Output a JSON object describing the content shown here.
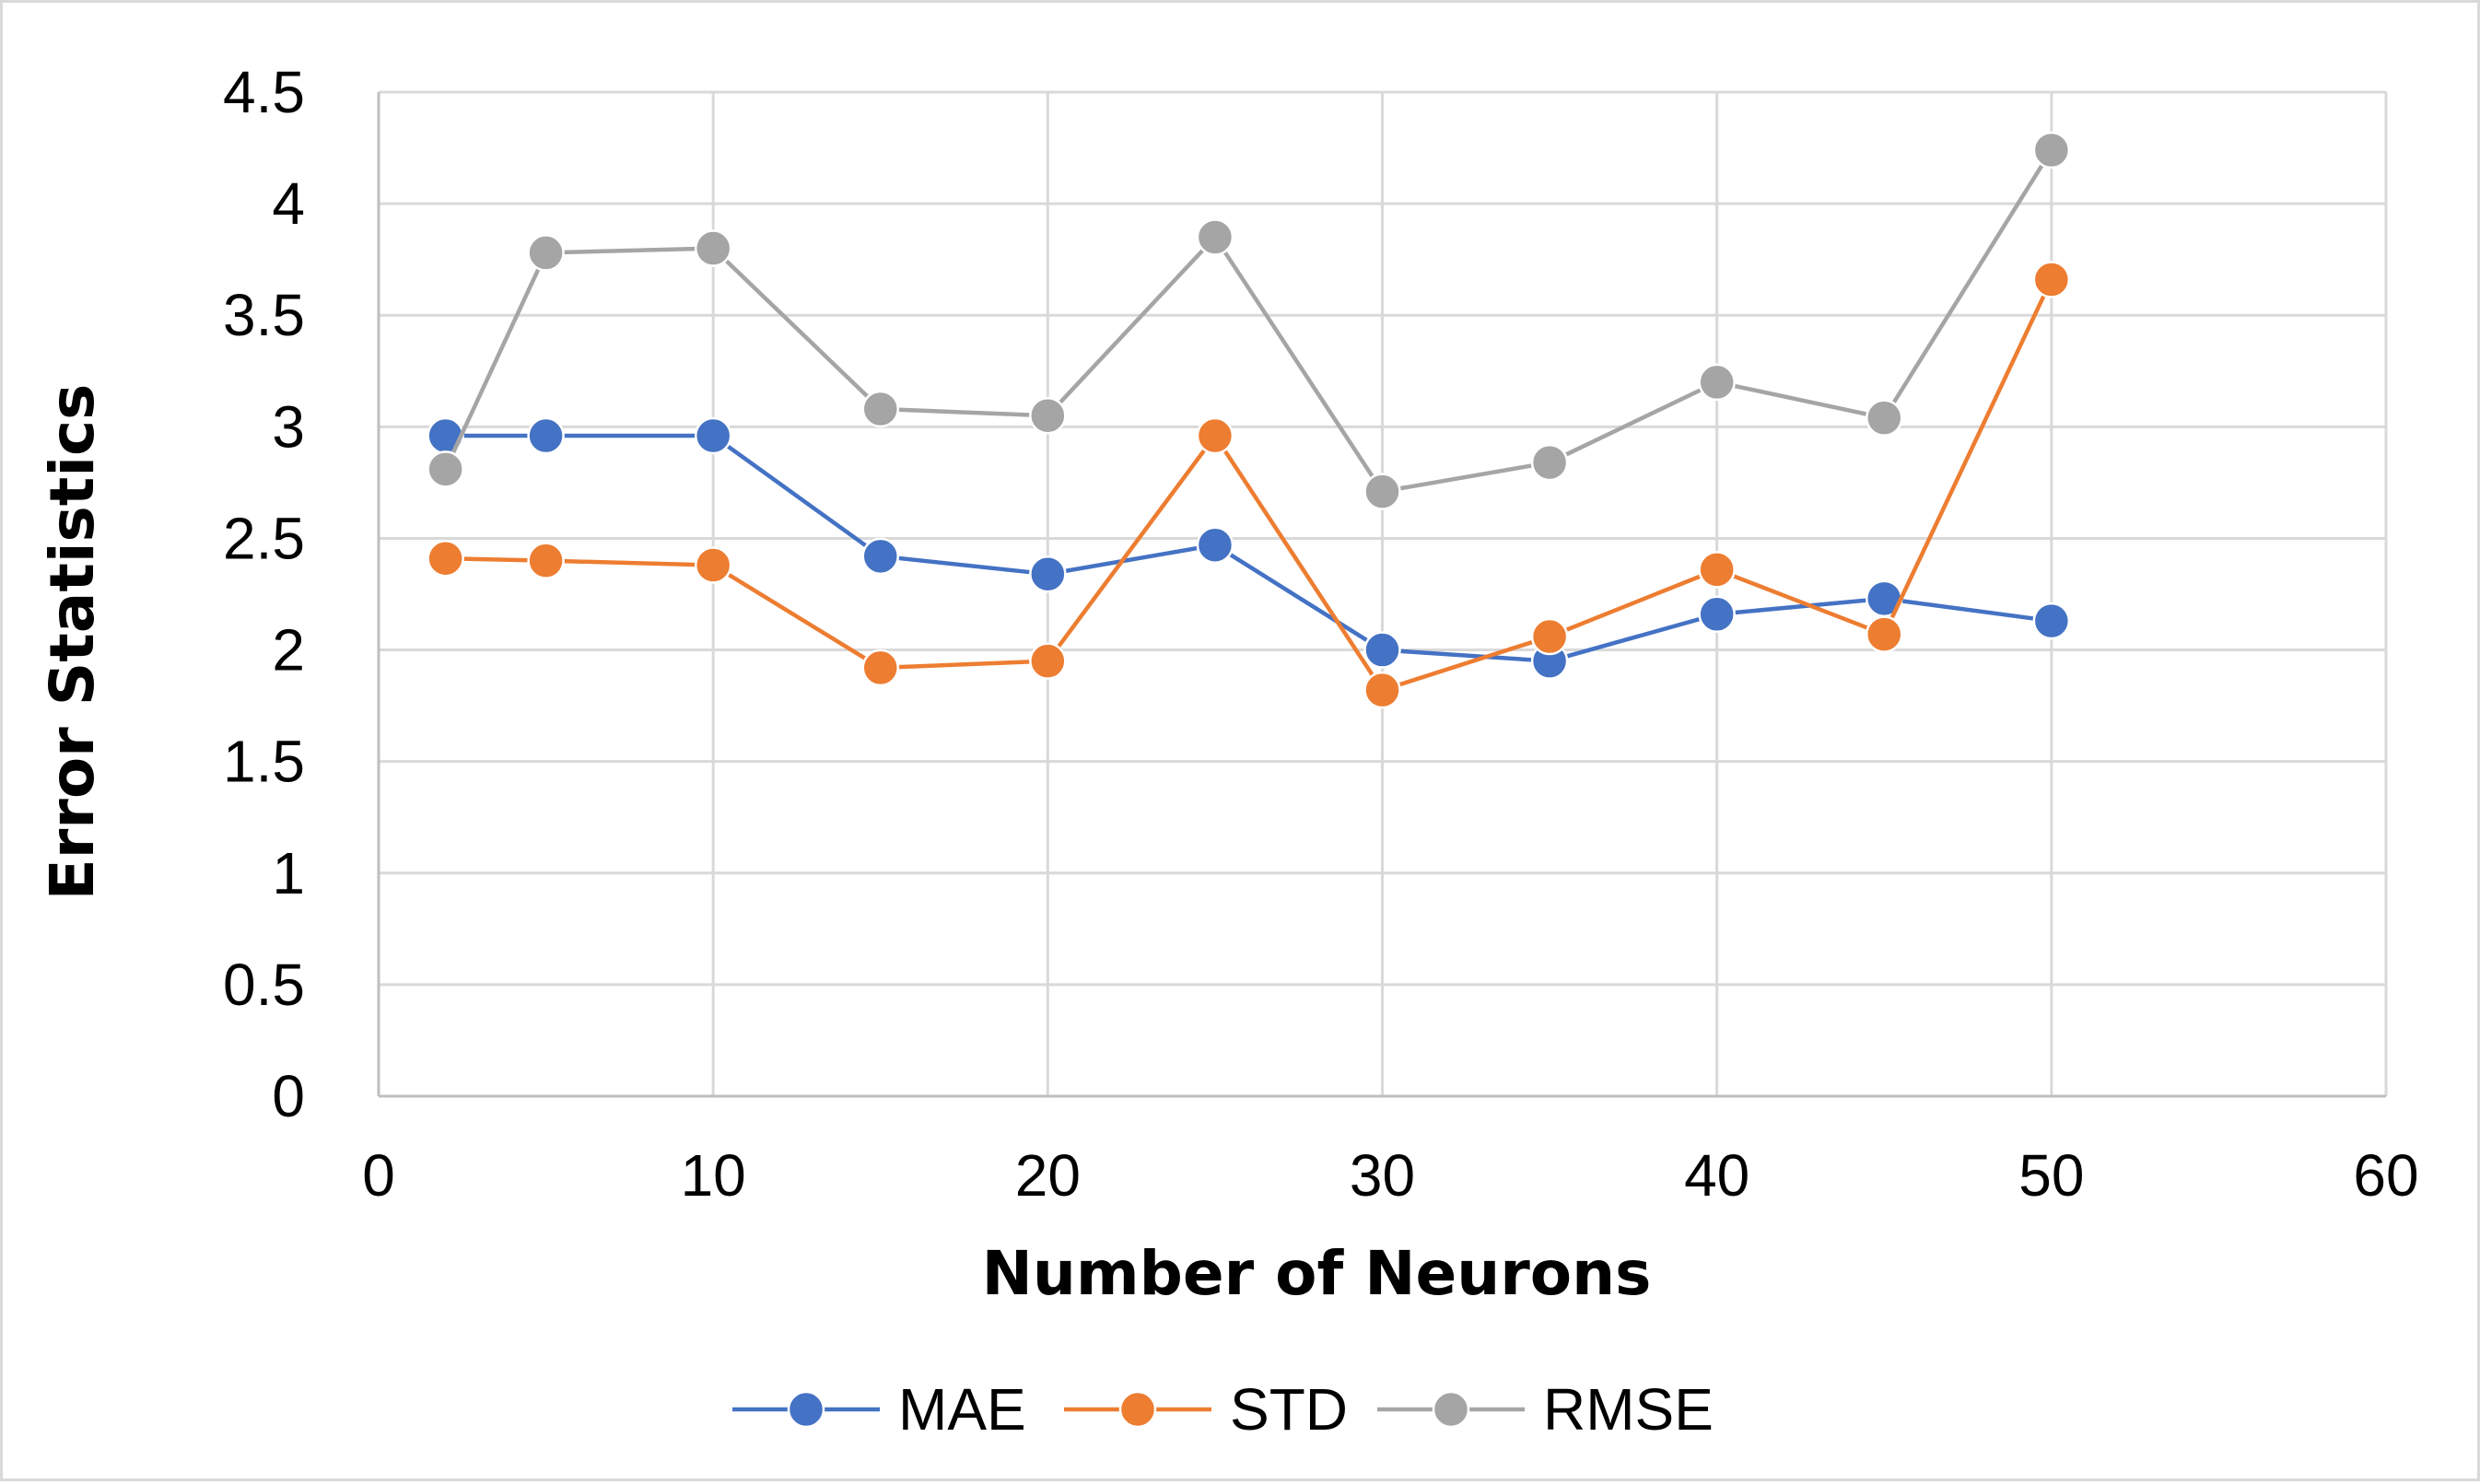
{
  "chart_data": {
    "type": "line",
    "title": "",
    "xlabel": "Number of Neurons",
    "ylabel": "Error Statistics",
    "xlim": [
      0,
      60
    ],
    "ylim": [
      0,
      4.5
    ],
    "x_ticks": [
      0,
      10,
      20,
      30,
      40,
      50,
      60
    ],
    "y_ticks": [
      0,
      0.5,
      1,
      1.5,
      2,
      2.5,
      3,
      3.5,
      4,
      4.5
    ],
    "x_tick_labels": [
      "0",
      "10",
      "20",
      "30",
      "40",
      "50",
      "60"
    ],
    "y_tick_labels": [
      "0",
      "0.5",
      "1",
      "1.5",
      "2",
      "2.5",
      "3",
      "3.5",
      "4",
      "4.5"
    ],
    "grid": true,
    "legend_position": "bottom",
    "x": [
      2,
      5,
      10,
      15,
      20,
      25,
      30,
      35,
      40,
      45,
      50
    ],
    "series": [
      {
        "name": "MAE",
        "color": "#4472c4",
        "values": [
          2.96,
          2.96,
          2.96,
          2.42,
          2.34,
          2.47,
          2.0,
          1.95,
          2.16,
          2.23,
          2.13
        ]
      },
      {
        "name": "STD",
        "color": "#ed7d31",
        "values": [
          2.41,
          2.4,
          2.38,
          1.92,
          1.95,
          2.96,
          1.82,
          2.06,
          2.36,
          2.07,
          3.66
        ]
      },
      {
        "name": "RMSE",
        "color": "#a5a5a5",
        "values": [
          2.81,
          3.78,
          3.8,
          3.08,
          3.05,
          3.85,
          2.71,
          2.84,
          3.2,
          3.04,
          4.24
        ]
      }
    ]
  }
}
